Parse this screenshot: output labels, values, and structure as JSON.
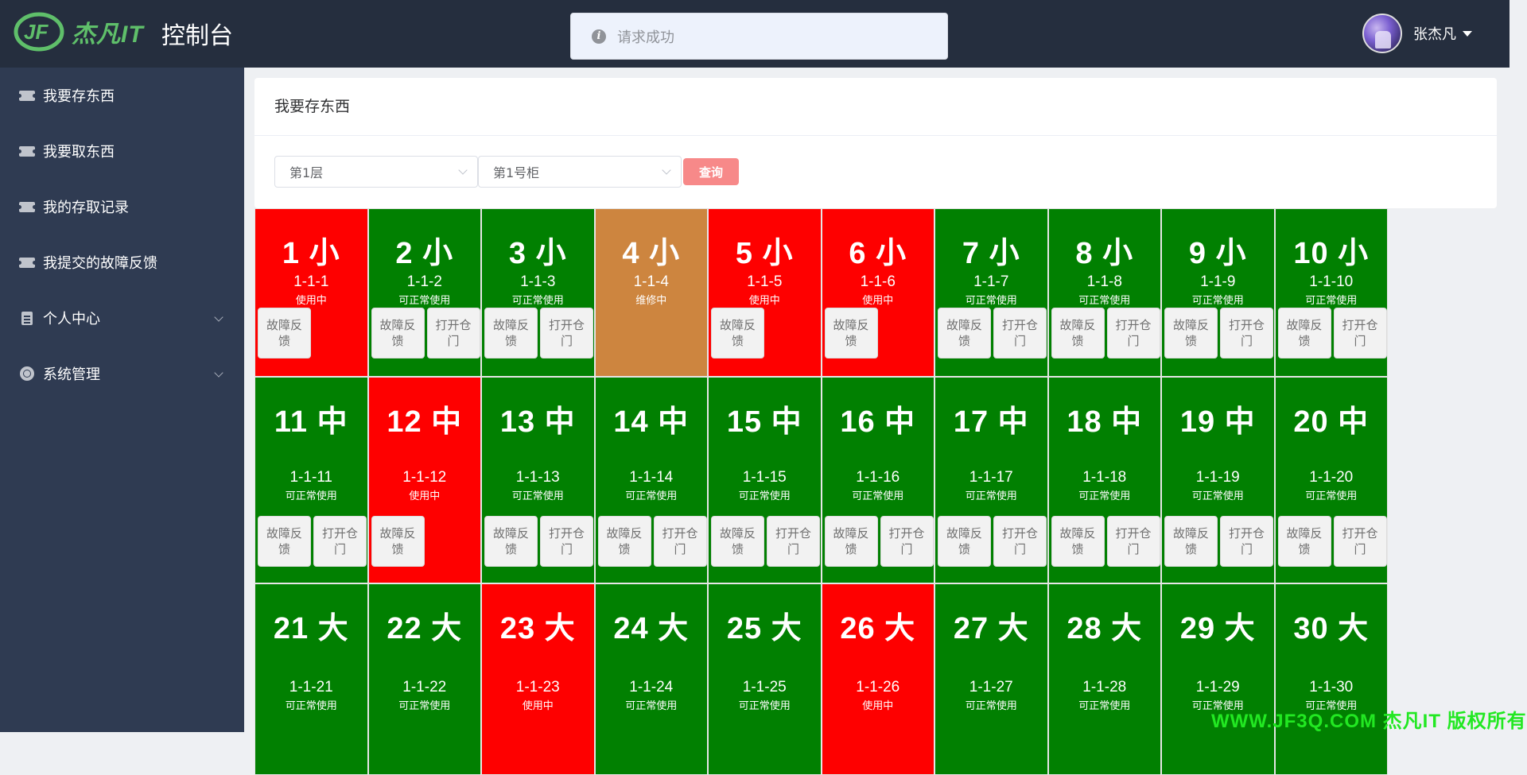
{
  "header": {
    "logo_text": "杰凡IT",
    "title": "控制台",
    "toast": "请求成功",
    "user_name": "张杰凡"
  },
  "sidebar": {
    "items": [
      {
        "label": "我要存东西",
        "icon": "ticket-icon",
        "expandable": false
      },
      {
        "label": "我要取东西",
        "icon": "ticket-icon",
        "expandable": false
      },
      {
        "label": "我的存取记录",
        "icon": "ticket-icon",
        "expandable": false
      },
      {
        "label": "我提交的故障反馈",
        "icon": "ticket-icon",
        "expandable": false
      },
      {
        "label": "个人中心",
        "icon": "clipboard-icon",
        "expandable": true
      },
      {
        "label": "系统管理",
        "icon": "gear-icon",
        "expandable": true
      }
    ]
  },
  "panel": {
    "title": "我要存东西",
    "floor_select": "第1层",
    "cabinet_select": "第1号柜",
    "query_button": "查询"
  },
  "buttons": {
    "report": "故障反馈",
    "open": "打开仓门"
  },
  "colors": {
    "available": "#018001",
    "in_use": "#fe0000",
    "maintenance": "#cd853f"
  },
  "lockers": [
    {
      "title": "1 小",
      "code": "1-1-1",
      "status": "使用中",
      "state": "in_use"
    },
    {
      "title": "2 小",
      "code": "1-1-2",
      "status": "可正常使用",
      "state": "available"
    },
    {
      "title": "3 小",
      "code": "1-1-3",
      "status": "可正常使用",
      "state": "available"
    },
    {
      "title": "4 小",
      "code": "1-1-4",
      "status": "维修中",
      "state": "maintenance"
    },
    {
      "title": "5 小",
      "code": "1-1-5",
      "status": "使用中",
      "state": "in_use"
    },
    {
      "title": "6 小",
      "code": "1-1-6",
      "status": "使用中",
      "state": "in_use"
    },
    {
      "title": "7 小",
      "code": "1-1-7",
      "status": "可正常使用",
      "state": "available"
    },
    {
      "title": "8 小",
      "code": "1-1-8",
      "status": "可正常使用",
      "state": "available"
    },
    {
      "title": "9 小",
      "code": "1-1-9",
      "status": "可正常使用",
      "state": "available"
    },
    {
      "title": "10 小",
      "code": "1-1-10",
      "status": "可正常使用",
      "state": "available"
    },
    {
      "title": "11 中",
      "code": "1-1-11",
      "status": "可正常使用",
      "state": "available"
    },
    {
      "title": "12 中",
      "code": "1-1-12",
      "status": "使用中",
      "state": "in_use"
    },
    {
      "title": "13 中",
      "code": "1-1-13",
      "status": "可正常使用",
      "state": "available"
    },
    {
      "title": "14 中",
      "code": "1-1-14",
      "status": "可正常使用",
      "state": "available"
    },
    {
      "title": "15 中",
      "code": "1-1-15",
      "status": "可正常使用",
      "state": "available"
    },
    {
      "title": "16 中",
      "code": "1-1-16",
      "status": "可正常使用",
      "state": "available"
    },
    {
      "title": "17 中",
      "code": "1-1-17",
      "status": "可正常使用",
      "state": "available"
    },
    {
      "title": "18 中",
      "code": "1-1-18",
      "status": "可正常使用",
      "state": "available"
    },
    {
      "title": "19 中",
      "code": "1-1-19",
      "status": "可正常使用",
      "state": "available"
    },
    {
      "title": "20 中",
      "code": "1-1-20",
      "status": "可正常使用",
      "state": "available"
    },
    {
      "title": "21 大",
      "code": "1-1-21",
      "status": "可正常使用",
      "state": "available"
    },
    {
      "title": "22 大",
      "code": "1-1-22",
      "status": "可正常使用",
      "state": "available"
    },
    {
      "title": "23 大",
      "code": "1-1-23",
      "status": "使用中",
      "state": "in_use"
    },
    {
      "title": "24 大",
      "code": "1-1-24",
      "status": "可正常使用",
      "state": "available"
    },
    {
      "title": "25 大",
      "code": "1-1-25",
      "status": "可正常使用",
      "state": "available"
    },
    {
      "title": "26 大",
      "code": "1-1-26",
      "status": "使用中",
      "state": "in_use"
    },
    {
      "title": "27 大",
      "code": "1-1-27",
      "status": "可正常使用",
      "state": "available"
    },
    {
      "title": "28 大",
      "code": "1-1-28",
      "status": "可正常使用",
      "state": "available"
    },
    {
      "title": "29 大",
      "code": "1-1-29",
      "status": "可正常使用",
      "state": "available"
    },
    {
      "title": "30 大",
      "code": "1-1-30",
      "status": "可正常使用",
      "state": "available"
    }
  ],
  "watermark": "WWW.JF3Q.COM 杰凡IT 版权所有"
}
